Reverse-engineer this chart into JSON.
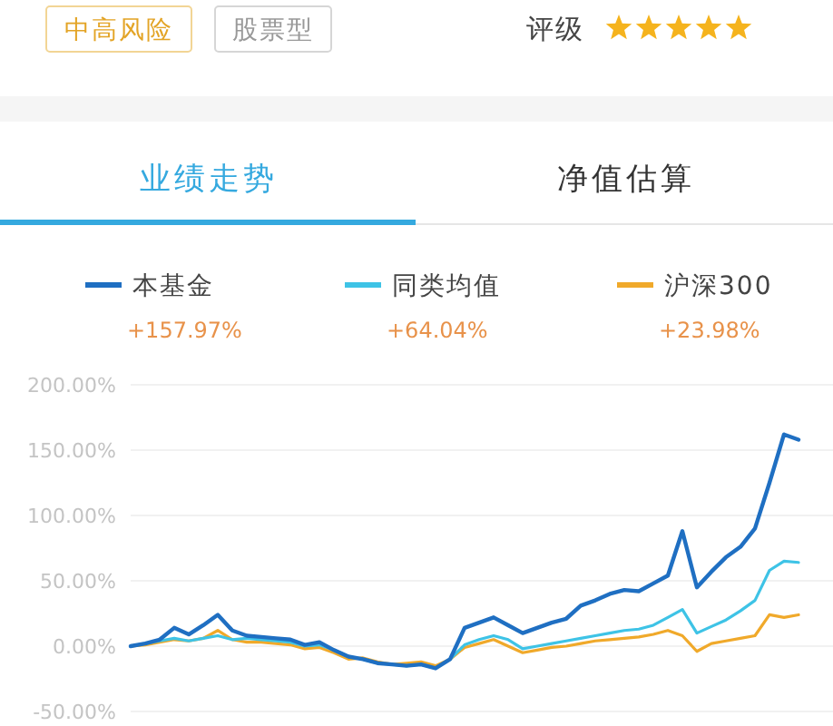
{
  "chart_data": {
    "type": "line",
    "title": "业绩走势",
    "annotations": [
      "中高风险",
      "股票型",
      "评级",
      "净值估算",
      "+157.97%",
      "+64.04%",
      "+23.98%"
    ],
    "categories": [
      null,
      null,
      null,
      null,
      null,
      null,
      null,
      null,
      null,
      null,
      null,
      null,
      null,
      null,
      null,
      null,
      null,
      null,
      null,
      null,
      null,
      null,
      null,
      null,
      null,
      null,
      null,
      null,
      null,
      null,
      null,
      null,
      null,
      null,
      null,
      null,
      null,
      null,
      null,
      null,
      null,
      null,
      null,
      null,
      null,
      null,
      null
    ],
    "series": [
      {
        "name": "本基金",
        "color": "#1f6fc2",
        "values": [
          0,
          2,
          5,
          14,
          9,
          16,
          24,
          12,
          8,
          7,
          6,
          5,
          1,
          3,
          -3,
          -8,
          -10,
          -13,
          -14,
          -15,
          -14,
          -17,
          -10,
          14,
          18,
          22,
          16,
          10,
          14,
          18,
          21,
          31,
          35,
          40,
          43,
          42,
          48,
          54,
          88,
          45,
          57,
          68,
          76,
          90,
          125,
          162,
          157.97
        ]
      },
      {
        "name": "同类均值",
        "color": "#3ec3e6",
        "values": [
          0,
          2,
          4,
          6,
          4,
          6,
          8,
          5,
          6,
          5,
          4,
          3,
          0,
          1,
          -3,
          -8,
          -10,
          -13,
          -14,
          -15,
          -14,
          -17,
          -10,
          1,
          5,
          8,
          5,
          -2,
          0,
          2,
          4,
          6,
          8,
          10,
          12,
          13,
          16,
          22,
          28,
          10,
          15,
          20,
          27,
          35,
          58,
          65,
          64.04
        ]
      },
      {
        "name": "沪深300",
        "color": "#f0a92a",
        "values": [
          0,
          1,
          3,
          5,
          4,
          6,
          12,
          5,
          3,
          3,
          2,
          1,
          -2,
          -1,
          -5,
          -10,
          -9,
          -12,
          -14,
          -13,
          -12,
          -15,
          -10,
          -1,
          2,
          5,
          0,
          -5,
          -3,
          -1,
          0,
          2,
          4,
          5,
          6,
          7,
          9,
          12,
          8,
          -4,
          2,
          4,
          6,
          8,
          24,
          22,
          23.98
        ]
      }
    ],
    "ylim": [
      -50,
      200
    ],
    "yticks": [
      {
        "value": -50,
        "label": "-50.00%"
      },
      {
        "value": 0,
        "label": "0.00%"
      },
      {
        "value": 50,
        "label": "50.00%"
      },
      {
        "value": 100,
        "label": "100.00%"
      },
      {
        "value": 150,
        "label": "150.00%"
      },
      {
        "value": 200,
        "label": "200.00%"
      }
    ],
    "grid": "y",
    "legend": "top",
    "tick_labels": "y"
  }
}
